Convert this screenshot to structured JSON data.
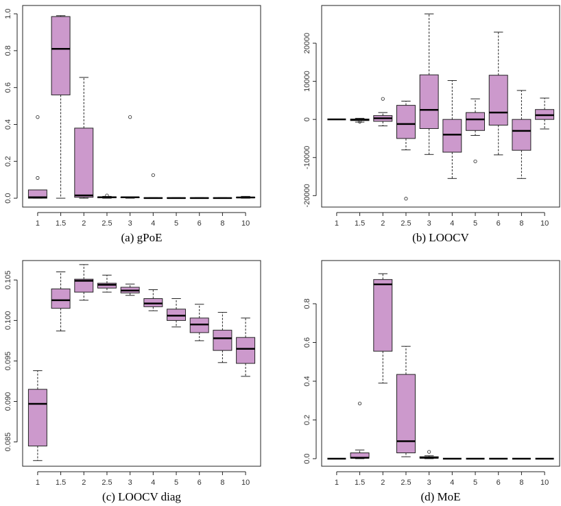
{
  "chart_data": [
    {
      "type": "box",
      "caption": "(a) gPoE",
      "color": "#cc99cc",
      "categories": [
        "1",
        "1.5",
        "2",
        "2.5",
        "3",
        "4",
        "5",
        "6",
        "8",
        "10"
      ],
      "min": [
        0,
        0,
        0,
        0,
        0,
        0,
        0,
        0,
        0,
        0
      ],
      "q1": [
        0,
        0.56,
        0.005,
        0.002,
        0.003,
        0,
        0,
        0,
        0,
        0.002
      ],
      "median": [
        0.005,
        0.81,
        0.015,
        0.005,
        0.005,
        0.001,
        0.001,
        0.001,
        0.001,
        0.004
      ],
      "q3": [
        0.045,
        0.985,
        0.38,
        0.008,
        0.006,
        0.002,
        0.002,
        0.002,
        0.002,
        0.006
      ],
      "max": [
        0.045,
        0.99,
        0.655,
        0.01,
        0.007,
        0.003,
        0.003,
        0.003,
        0.003,
        0.01
      ],
      "outliers": [
        [
          0.44,
          0.11
        ],
        [],
        [],
        [
          0.015
        ],
        [
          0.44
        ],
        [
          0.125
        ],
        [],
        [],
        [],
        []
      ],
      "ylim": [
        -0.048,
        1.045
      ],
      "yticks": [
        {
          "value": 0,
          "label": "0.0"
        },
        0.2,
        0.4,
        0.6,
        0.8,
        {
          "value": 1,
          "label": "1.0"
        }
      ]
    },
    {
      "type": "box",
      "caption": "(b) LOOCV",
      "color": "#cc99cc",
      "categories": [
        "1",
        "1.5",
        "2",
        "2.5",
        "3",
        "4",
        "5",
        "6",
        "8",
        "10"
      ],
      "min": [
        0,
        -700,
        -1700,
        -8000,
        -9200,
        -15500,
        -4200,
        -9300,
        -15500,
        -2500
      ],
      "q1": [
        0,
        -300,
        -500,
        -5000,
        -2400,
        -8600,
        -2900,
        -1500,
        -8100,
        0
      ],
      "median": [
        0,
        -100,
        300,
        -1200,
        2500,
        -4000,
        0,
        1800,
        -3000,
        1100
      ],
      "q3": [
        0,
        100,
        1000,
        3700,
        11700,
        0,
        1800,
        11600,
        0,
        2600
      ],
      "max": [
        0,
        300,
        1800,
        4800,
        27700,
        10200,
        5400,
        22900,
        7600,
        5600
      ],
      "outliers": [
        [],
        [
          -600
        ],
        [
          5400
        ],
        [
          -20800
        ],
        [],
        [],
        [
          -11000
        ],
        [],
        [],
        []
      ],
      "ylim": [
        -23000,
        29900
      ],
      "yticks": [
        -20000,
        -10000,
        0,
        10000,
        20000
      ]
    },
    {
      "type": "box",
      "caption": "(c) LOOCV diag",
      "color": "#cc99cc",
      "categories": [
        "1",
        "1.5",
        "2",
        "2.5",
        "3",
        "4",
        "5",
        "6",
        "8",
        "10"
      ],
      "min": [
        0.0827,
        0.0987,
        0.1025,
        0.1035,
        0.1031,
        0.1012,
        0.0992,
        0.0975,
        0.0948,
        0.0931
      ],
      "q1": [
        0.0845,
        0.1015,
        0.1035,
        0.104,
        0.1034,
        0.1017,
        0.1,
        0.0985,
        0.0963,
        0.0947
      ],
      "median": [
        0.0897,
        0.1025,
        0.1049,
        0.1044,
        0.1037,
        0.1021,
        0.1006,
        0.0995,
        0.0978,
        0.0965
      ],
      "q3": [
        0.0915,
        0.1039,
        0.1051,
        0.1046,
        0.1041,
        0.1027,
        0.1014,
        0.1003,
        0.0988,
        0.0979
      ],
      "max": [
        0.0938,
        0.106,
        0.1069,
        0.1056,
        0.1045,
        0.1038,
        0.1027,
        0.102,
        0.101,
        0.1003
      ],
      "outliers": [
        [],
        [],
        [],
        [],
        [],
        [],
        [],
        [],
        [],
        []
      ],
      "ylim": [
        0.082,
        0.1074
      ],
      "yticks": [
        0.085,
        {
          "value": 0.09,
          "label": "0.090"
        },
        0.095,
        {
          "value": 0.1,
          "label": "0.100"
        },
        0.105
      ]
    },
    {
      "type": "box",
      "caption": "(d) MoE",
      "color": "#cc99cc",
      "categories": [
        "1",
        "1.5",
        "2",
        "2.5",
        "3",
        "4",
        "5",
        "6",
        "8",
        "10"
      ],
      "min": [
        0,
        0,
        0.39,
        0.01,
        0,
        0,
        0,
        0,
        0,
        0
      ],
      "q1": [
        0,
        0.003,
        0.555,
        0.03,
        0.003,
        0,
        0,
        0,
        0,
        0
      ],
      "median": [
        0,
        0.005,
        0.9,
        0.09,
        0.005,
        0,
        0,
        0,
        0,
        0
      ],
      "q3": [
        0,
        0.03,
        0.925,
        0.435,
        0.01,
        0,
        0,
        0,
        0,
        0
      ],
      "max": [
        0,
        0.045,
        0.955,
        0.58,
        0.015,
        0,
        0,
        0,
        0,
        0
      ],
      "outliers": [
        [],
        [
          0.285
        ],
        [],
        [],
        [
          0.035
        ],
        [],
        [],
        [],
        [],
        []
      ],
      "ylim": [
        -0.039,
        1.023
      ],
      "yticks": [
        {
          "value": 0,
          "label": "0.0"
        },
        0.2,
        0.4,
        0.6,
        0.8
      ]
    }
  ]
}
